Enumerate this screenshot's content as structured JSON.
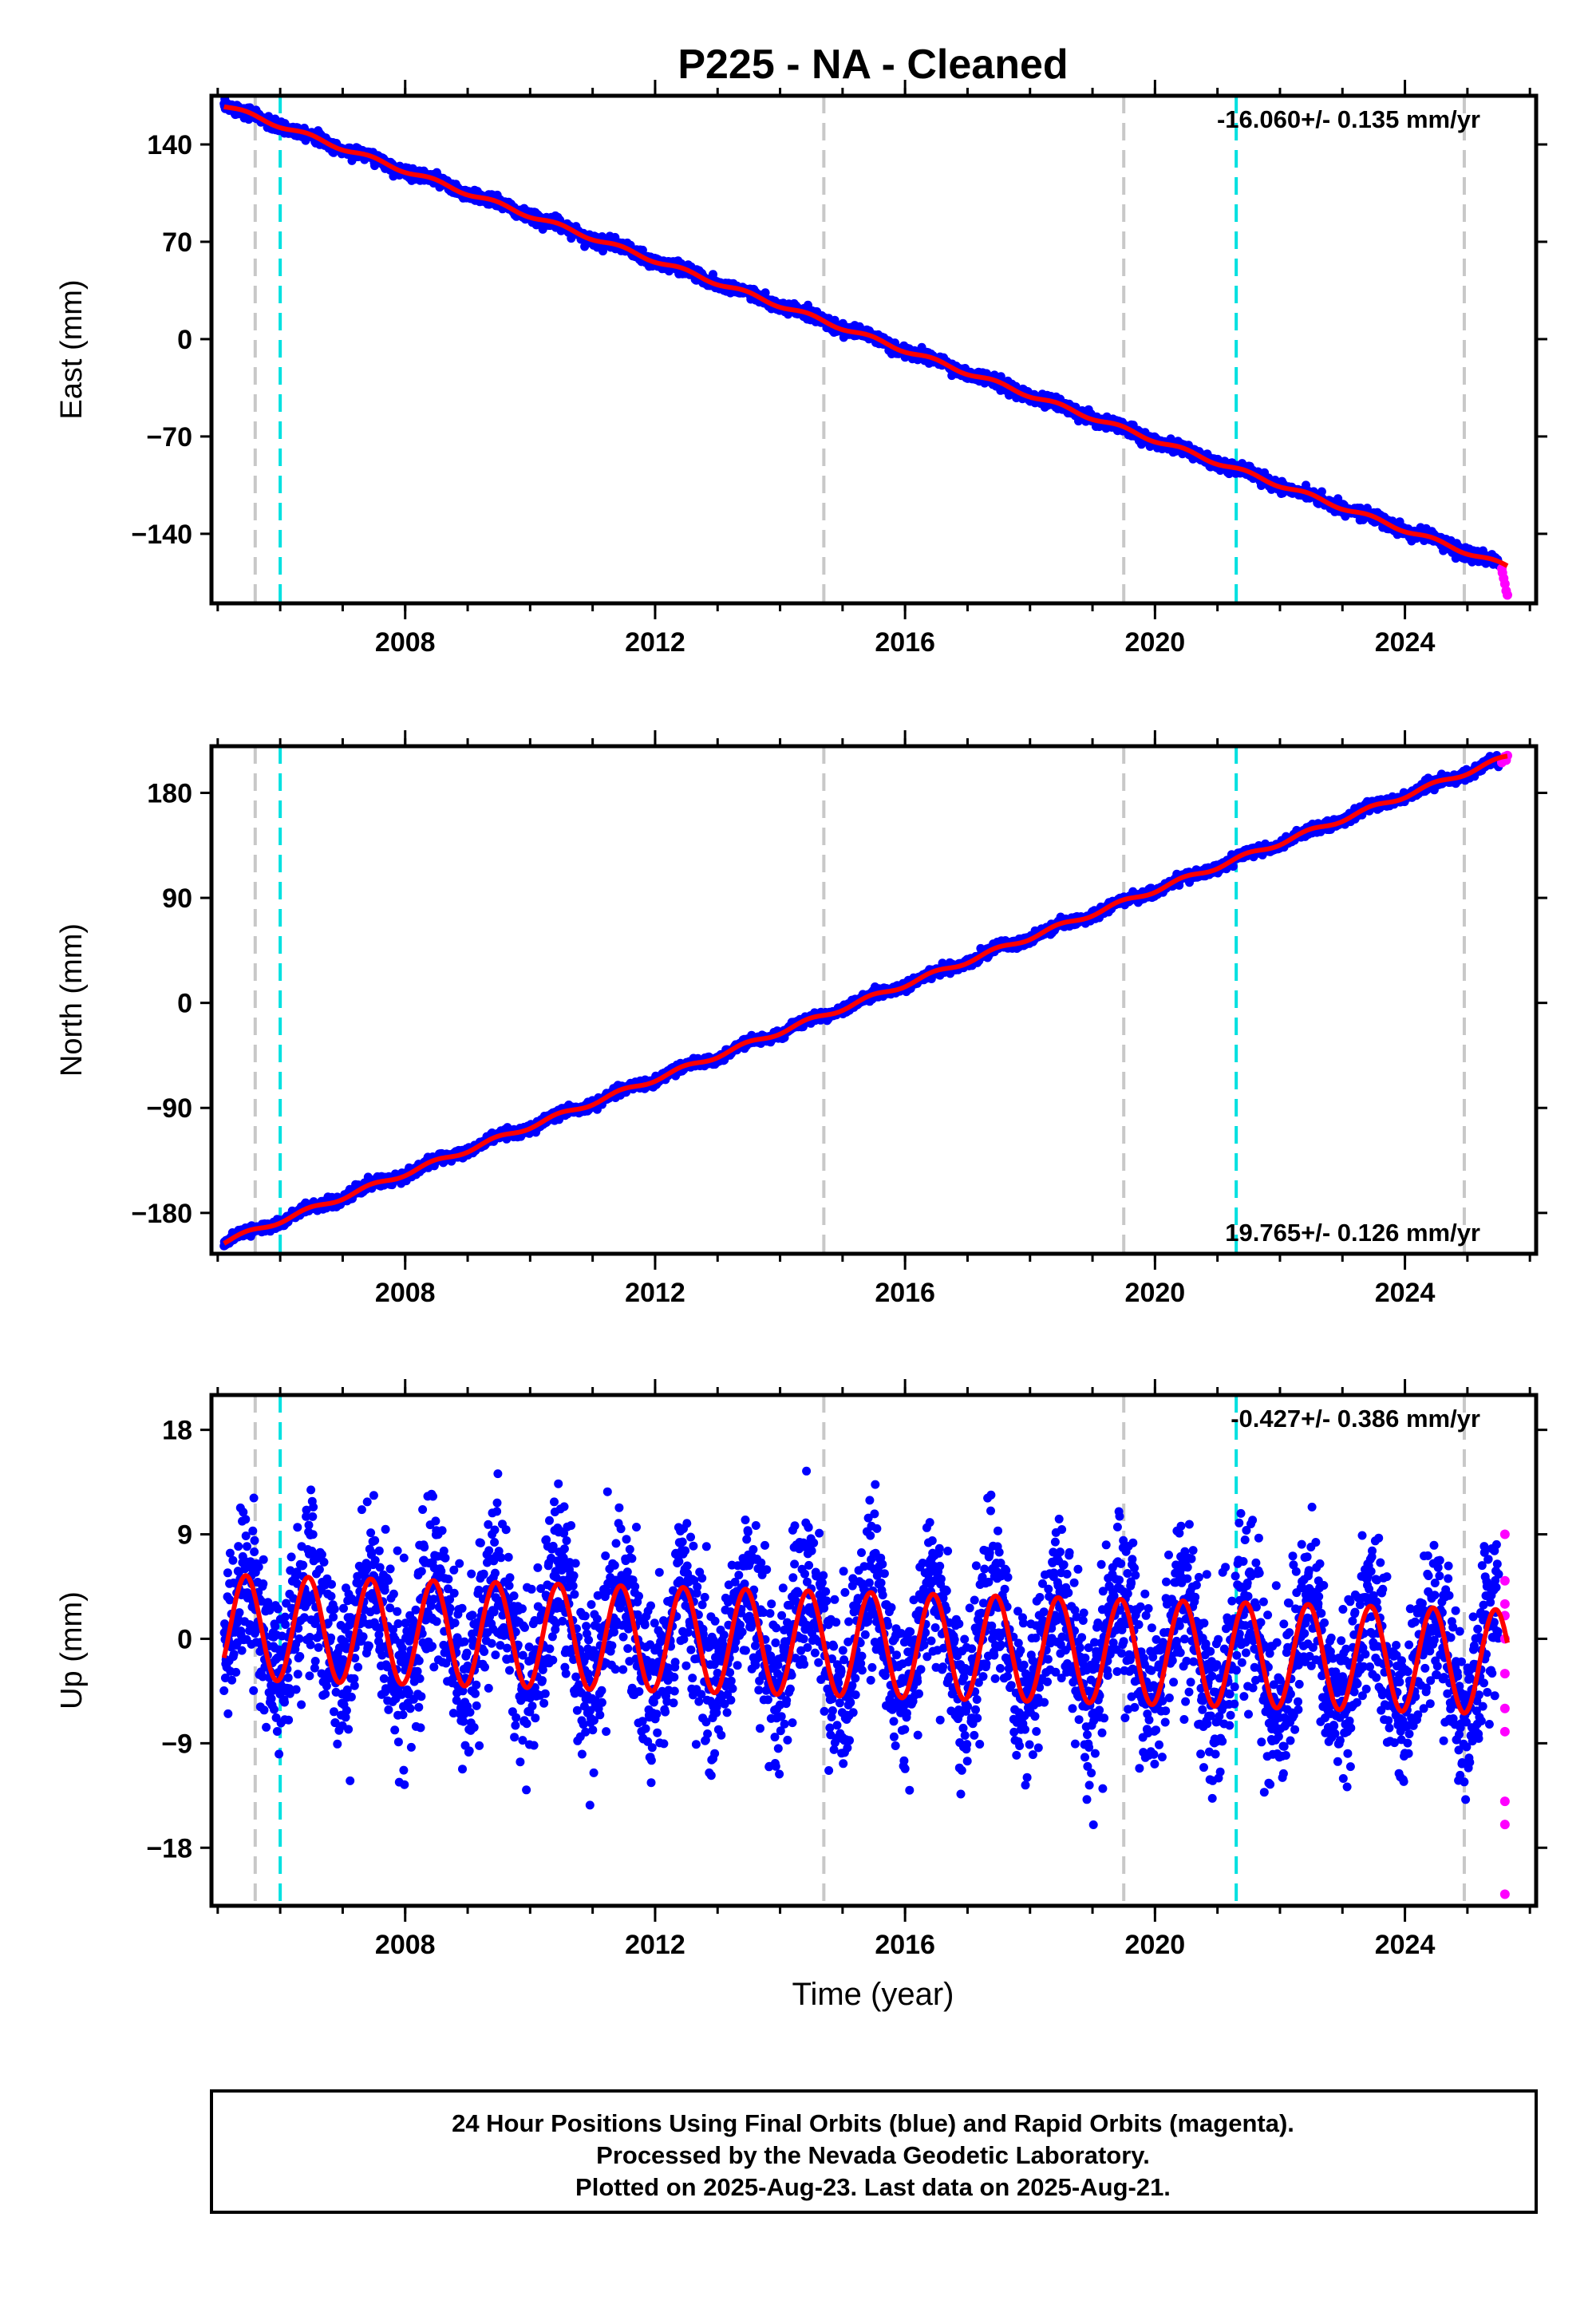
{
  "title": "P225  - NA - Cleaned",
  "colors": {
    "final_orbits": "#0000ff",
    "rapid_orbits": "#ff00ff",
    "model": "#ff0000",
    "offset_gray": "#c8c8c8",
    "offset_cyan": "#00e0e0"
  },
  "chart_data": [
    {
      "type": "scatter",
      "name": "east",
      "ylabel": "East (mm)",
      "rate_label": "-16.060+/- 0.135 mm/yr",
      "rate_pos": "top-right",
      "xlim": [
        2004.9,
        2026.1
      ],
      "ylim": [
        -190,
        175
      ],
      "yticks": [
        140,
        70,
        0,
        -70,
        -140
      ],
      "xticks": [
        2008,
        2012,
        2016,
        2020,
        2024
      ],
      "x_tick_labels": [
        "2008",
        "2012",
        "2016",
        "2020",
        "2024"
      ],
      "trend": {
        "start": [
          2005.1,
          168
        ],
        "end": [
          2025.6,
          -163
        ]
      },
      "seasonal_amplitude": 1.5,
      "noise": 2,
      "series": [
        {
          "name": "Final Orbits",
          "x_range": [
            2005.1,
            2025.5
          ]
        },
        {
          "name": "Rapid Orbits",
          "x_range": [
            2025.5,
            2025.64
          ]
        }
      ],
      "rapid_points": [
        [
          2025.55,
          -165
        ],
        [
          2025.58,
          -172
        ],
        [
          2025.6,
          -176
        ],
        [
          2025.62,
          -181
        ],
        [
          2025.64,
          -184
        ],
        [
          2025.56,
          -168
        ]
      ],
      "offsets_gray": [
        2005.6,
        2014.7,
        2019.5,
        2024.95
      ],
      "offsets_cyan": [
        2006.0,
        2021.3
      ]
    },
    {
      "type": "scatter",
      "name": "north",
      "ylabel": "North (mm)",
      "rate_label": "19.765+/- 0.126 mm/yr",
      "rate_pos": "bottom-right",
      "xlim": [
        2004.9,
        2026.1
      ],
      "ylim": [
        -215,
        220
      ],
      "yticks": [
        180,
        90,
        0,
        -90,
        -180
      ],
      "xticks": [
        2008,
        2012,
        2016,
        2020,
        2024
      ],
      "x_tick_labels": [
        "2008",
        "2012",
        "2016",
        "2020",
        "2024"
      ],
      "trend": {
        "start": [
          2005.1,
          -205
        ],
        "end": [
          2025.6,
          210
        ]
      },
      "seasonal_amplitude": 2,
      "noise": 2,
      "series": [
        {
          "name": "Final Orbits",
          "x_range": [
            2005.1,
            2025.5
          ]
        },
        {
          "name": "Rapid Orbits",
          "x_range": [
            2025.5,
            2025.64
          ]
        }
      ],
      "rapid_points": [
        [
          2025.55,
          206
        ],
        [
          2025.58,
          209
        ],
        [
          2025.6,
          211
        ],
        [
          2025.62,
          208
        ],
        [
          2025.64,
          212
        ]
      ],
      "offsets_gray": [
        2005.6,
        2014.7,
        2019.5,
        2024.95
      ],
      "offsets_cyan": [
        2006.0,
        2021.3
      ]
    },
    {
      "type": "scatter",
      "name": "up",
      "ylabel": "Up (mm)",
      "xlabel": "Time (year)",
      "rate_label": "-0.427+/- 0.386 mm/yr",
      "rate_pos": "top-right",
      "xlim": [
        2004.9,
        2026.1
      ],
      "ylim": [
        -23,
        21
      ],
      "yticks": [
        18,
        9,
        0,
        -9,
        -18
      ],
      "xticks": [
        2008,
        2012,
        2016,
        2020,
        2024
      ],
      "x_tick_labels": [
        "2008",
        "2012",
        "2016",
        "2020",
        "2024"
      ],
      "trend": {
        "start": [
          2005.1,
          1
        ],
        "end": [
          2025.6,
          -2
        ]
      },
      "seasonal_amplitude": 4.5,
      "noise": 3.6,
      "series": [
        {
          "name": "Final Orbits",
          "x_range": [
            2005.1,
            2025.5
          ]
        },
        {
          "name": "Rapid Orbits",
          "x_range": [
            2025.5,
            2025.64
          ]
        }
      ],
      "rapid_points": [
        [
          2025.6,
          9
        ],
        [
          2025.6,
          5
        ],
        [
          2025.6,
          3
        ],
        [
          2025.6,
          2
        ],
        [
          2025.6,
          0
        ],
        [
          2025.6,
          -3
        ],
        [
          2025.6,
          -6
        ],
        [
          2025.6,
          -8
        ],
        [
          2025.6,
          -14
        ],
        [
          2025.6,
          -16
        ],
        [
          2025.6,
          -22
        ]
      ],
      "offsets_gray": [
        2005.6,
        2014.7,
        2019.5,
        2024.95
      ],
      "offsets_cyan": [
        2006.0,
        2021.3
      ]
    }
  ],
  "footer": {
    "line1": "24 Hour Positions Using Final Orbits (blue) and Rapid Orbits (magenta).",
    "line2": "Processed by the Nevada Geodetic Laboratory.",
    "line3": "Plotted on 2025-Aug-23. Last data on 2025-Aug-21."
  }
}
